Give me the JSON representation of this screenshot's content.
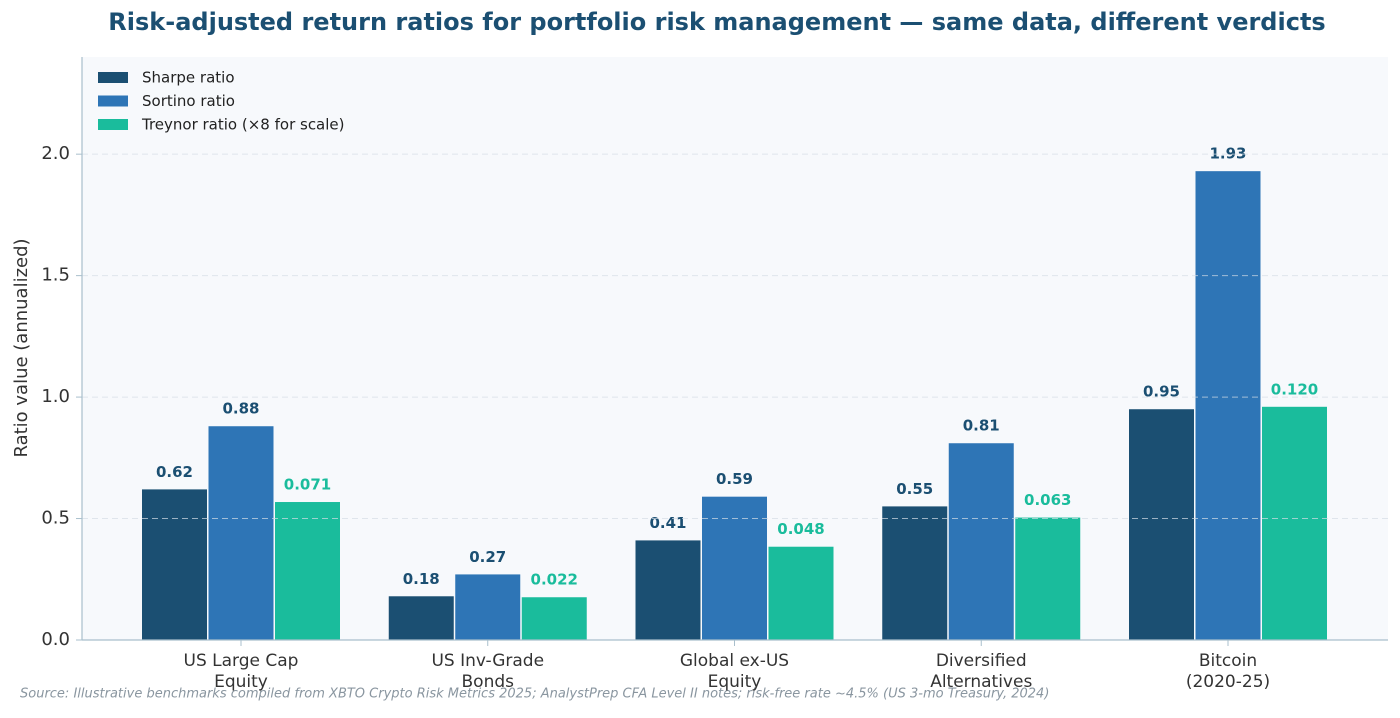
{
  "chart_data": {
    "type": "bar",
    "title": "Risk-adjusted return ratios for portfolio risk management — same data, different verdicts",
    "y_label": "Ratio value (annualized)",
    "source": "Source: Illustrative benchmarks compiled from XBTO Crypto Risk Metrics 2025; AnalystPrep CFA Level II notes; risk-free rate ~4.5% (US 3-mo Treasury, 2024)",
    "categories": [
      "US Large Cap\nEquity",
      "US Inv-Grade\nBonds",
      "Global ex-US\nEquity",
      "Diversified\nAlternatives",
      "Bitcoin\n(2020-25)"
    ],
    "series": [
      {
        "name": "Sharpe ratio",
        "color": "#1b4f72",
        "values": [
          0.62,
          0.18,
          0.41,
          0.55,
          0.95
        ]
      },
      {
        "name": "Sortino ratio",
        "color": "#2e75b6",
        "values": [
          0.88,
          0.27,
          0.59,
          0.81,
          1.93
        ]
      },
      {
        "name": "Treynor ratio (×8 for scale)",
        "color": "#1abc9c",
        "values": [
          0.568,
          0.176,
          0.384,
          0.504,
          0.96
        ],
        "value_labels": [
          "0.071",
          "0.022",
          "0.048",
          "0.063",
          "0.120"
        ]
      }
    ],
    "ylim": [
      0,
      2.4
    ],
    "yticks": [
      {
        "value": 0,
        "label": "0.0"
      },
      {
        "value": 0.5,
        "label": "0.5"
      },
      {
        "value": 1,
        "label": "1.0"
      },
      {
        "value": 1.5,
        "label": "1.5"
      },
      {
        "value": 2,
        "label": "2.0"
      }
    ],
    "grid": true,
    "legend": "upper left"
  }
}
